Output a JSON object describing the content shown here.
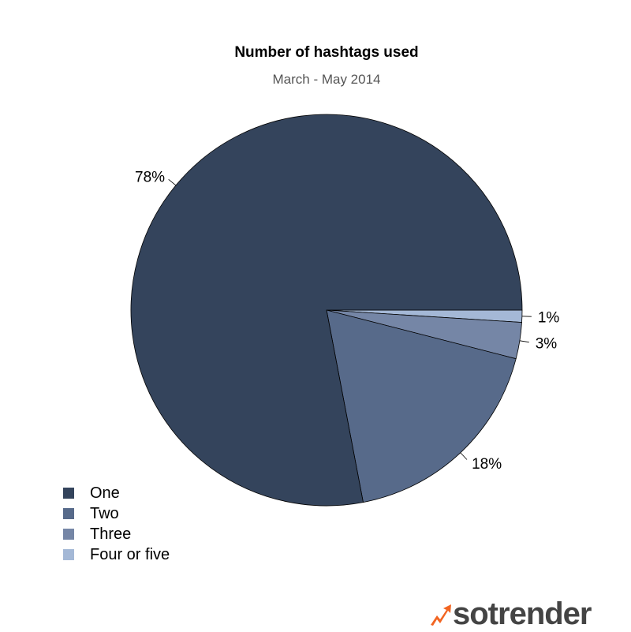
{
  "chart_data": {
    "type": "pie",
    "title": "Number of hashtags used",
    "subtitle": "March - May 2014",
    "slices": [
      {
        "name": "One",
        "value": 78,
        "label": "78%",
        "color": "#34445c"
      },
      {
        "name": "Two",
        "value": 18,
        "label": "18%",
        "color": "#576a8a"
      },
      {
        "name": "Three",
        "value": 3,
        "label": "3%",
        "color": "#7586a6"
      },
      {
        "name": "Four or five",
        "value": 1,
        "label": "1%",
        "color": "#a4b8d6"
      }
    ],
    "legend_position": "bottom-left"
  },
  "brand": {
    "name": "sotrender",
    "accent": "#f26522"
  }
}
